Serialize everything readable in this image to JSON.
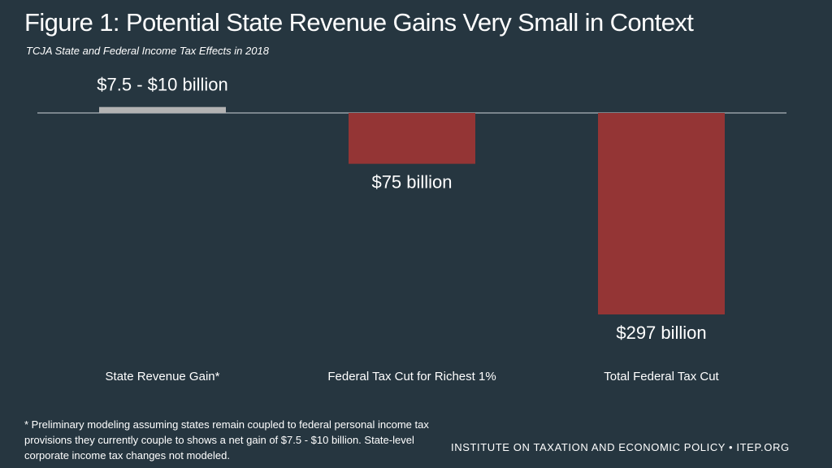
{
  "chart_data": {
    "type": "bar",
    "title": "Figure 1: Potential State Revenue Gains Very Small in Context",
    "subtitle": "TCJA State and Federal Income Tax Effects in 2018",
    "categories": [
      "State Revenue Gain*",
      "Federal Tax Cut for Richest 1%",
      "Total Federal Tax Cut"
    ],
    "values": [
      8.75,
      -75,
      -297
    ],
    "data_labels": [
      "$7.5 - $10 billion",
      "$75 billion",
      "$297 billion"
    ],
    "units": "billion dollars",
    "bar_colors": [
      "#b3b3b3",
      "#943535",
      "#943535"
    ],
    "ylim": [
      -297,
      0
    ],
    "grid": false,
    "xlabel": "",
    "ylabel": ""
  },
  "footnote": "* Preliminary modeling assuming states remain coupled to federal personal income tax provisions they currently couple to shows a net gain of $7.5 - $10 billion. State-level corporate income tax changes not modeled.",
  "source": "INSTITUTE ON TAXATION AND ECONOMIC POLICY • ITEP.ORG",
  "colors": {
    "background": "#263640",
    "text": "#ffffff",
    "baseline": "#cfd4d7"
  }
}
